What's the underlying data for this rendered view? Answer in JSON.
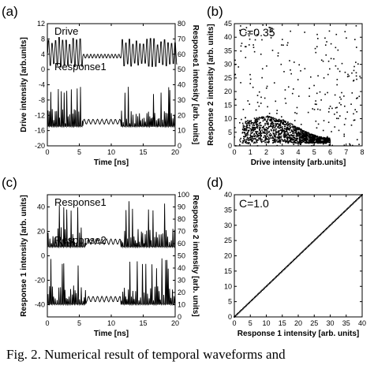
{
  "caption": "Fig. 2.  Numerical result of temporal waveforms and",
  "chart_data": [
    {
      "panel": "(a)",
      "type": "line",
      "xlabel": "Time [ns]",
      "ylabel": "Drive intensity [arb.units]",
      "ylabel_right": "Response1 intensity [arb. units]",
      "xlim": [
        0,
        20
      ],
      "ylim": [
        -20,
        12
      ],
      "ylim_right": [
        0,
        80
      ],
      "xticks": [
        "0",
        "5",
        "10",
        "15",
        "20"
      ],
      "yticks": [
        "-20",
        "-16",
        "-12",
        "-8",
        "-4",
        "0",
        "4",
        "8",
        "12"
      ],
      "yticks_right": [
        "0",
        "10",
        "20",
        "30",
        "40",
        "50",
        "60",
        "70",
        "80"
      ],
      "series": [
        {
          "name": "Drive",
          "pattern": "periodic-oscillation",
          "baseline": 3.5,
          "amplitude": 5,
          "period_ns": 0.55,
          "quiet_interval_ns": [
            5.5,
            11.5
          ]
        },
        {
          "name": "Response1",
          "pattern": "irregular-spikes",
          "baseline": -15,
          "peak_max": -4,
          "quiet_interval_ns": [
            5.5,
            11.5
          ]
        }
      ]
    },
    {
      "panel": "(b)",
      "type": "scatter",
      "xlabel": "Drive intensity [arb.units]",
      "ylabel": "Response 2 intensity [arb. units]",
      "xlim": [
        0,
        8
      ],
      "ylim": [
        0,
        45
      ],
      "xticks": [
        "0",
        "1",
        "2",
        "3",
        "4",
        "5",
        "6",
        "7",
        "8"
      ],
      "yticks": [
        "0",
        "5",
        "10",
        "15",
        "20",
        "25",
        "30",
        "35",
        "40",
        "45"
      ],
      "annotation": "C=0.35",
      "point_count": 1500
    },
    {
      "panel": "(c)",
      "type": "line",
      "xlabel": "Time [ns]",
      "ylabel": "Response 1 intensity [arb. units]",
      "ylabel_right": "Response 2 intensity [arb. units]",
      "xlim": [
        0,
        20
      ],
      "ylim": [
        -50,
        50
      ],
      "ylim_right": [
        0,
        100
      ],
      "xticks": [
        "0",
        "5",
        "10",
        "15",
        "20"
      ],
      "yticks": [
        "-40",
        "-20",
        "0",
        "20",
        "40"
      ],
      "yticks_right": [
        "0",
        "10",
        "20",
        "30",
        "40",
        "50",
        "60",
        "70",
        "80",
        "90",
        "100"
      ],
      "series": [
        {
          "name": "Response1",
          "pattern": "irregular-spikes",
          "baseline": 7,
          "peak_max": 45,
          "quiet_interval_ns": [
            6,
            11.5
          ]
        },
        {
          "name": "Response2",
          "pattern": "irregular-spikes",
          "baseline": -40,
          "peak_max": -2,
          "quiet_interval_ns": [
            6,
            11.5
          ]
        }
      ]
    },
    {
      "panel": "(d)",
      "type": "scatter",
      "xlabel": "Response 1 intensity [arb. units]",
      "ylabel": "",
      "xlim": [
        0,
        40
      ],
      "ylim": [
        0,
        40
      ],
      "xticks": [
        "0",
        "5",
        "10",
        "15",
        "20",
        "25",
        "30",
        "35",
        "40"
      ],
      "yticks": [
        "0",
        "5",
        "10",
        "15",
        "20",
        "25",
        "30",
        "35",
        "40"
      ],
      "annotation": "C=1.0",
      "relation": "y = x",
      "point_count": 120
    }
  ]
}
